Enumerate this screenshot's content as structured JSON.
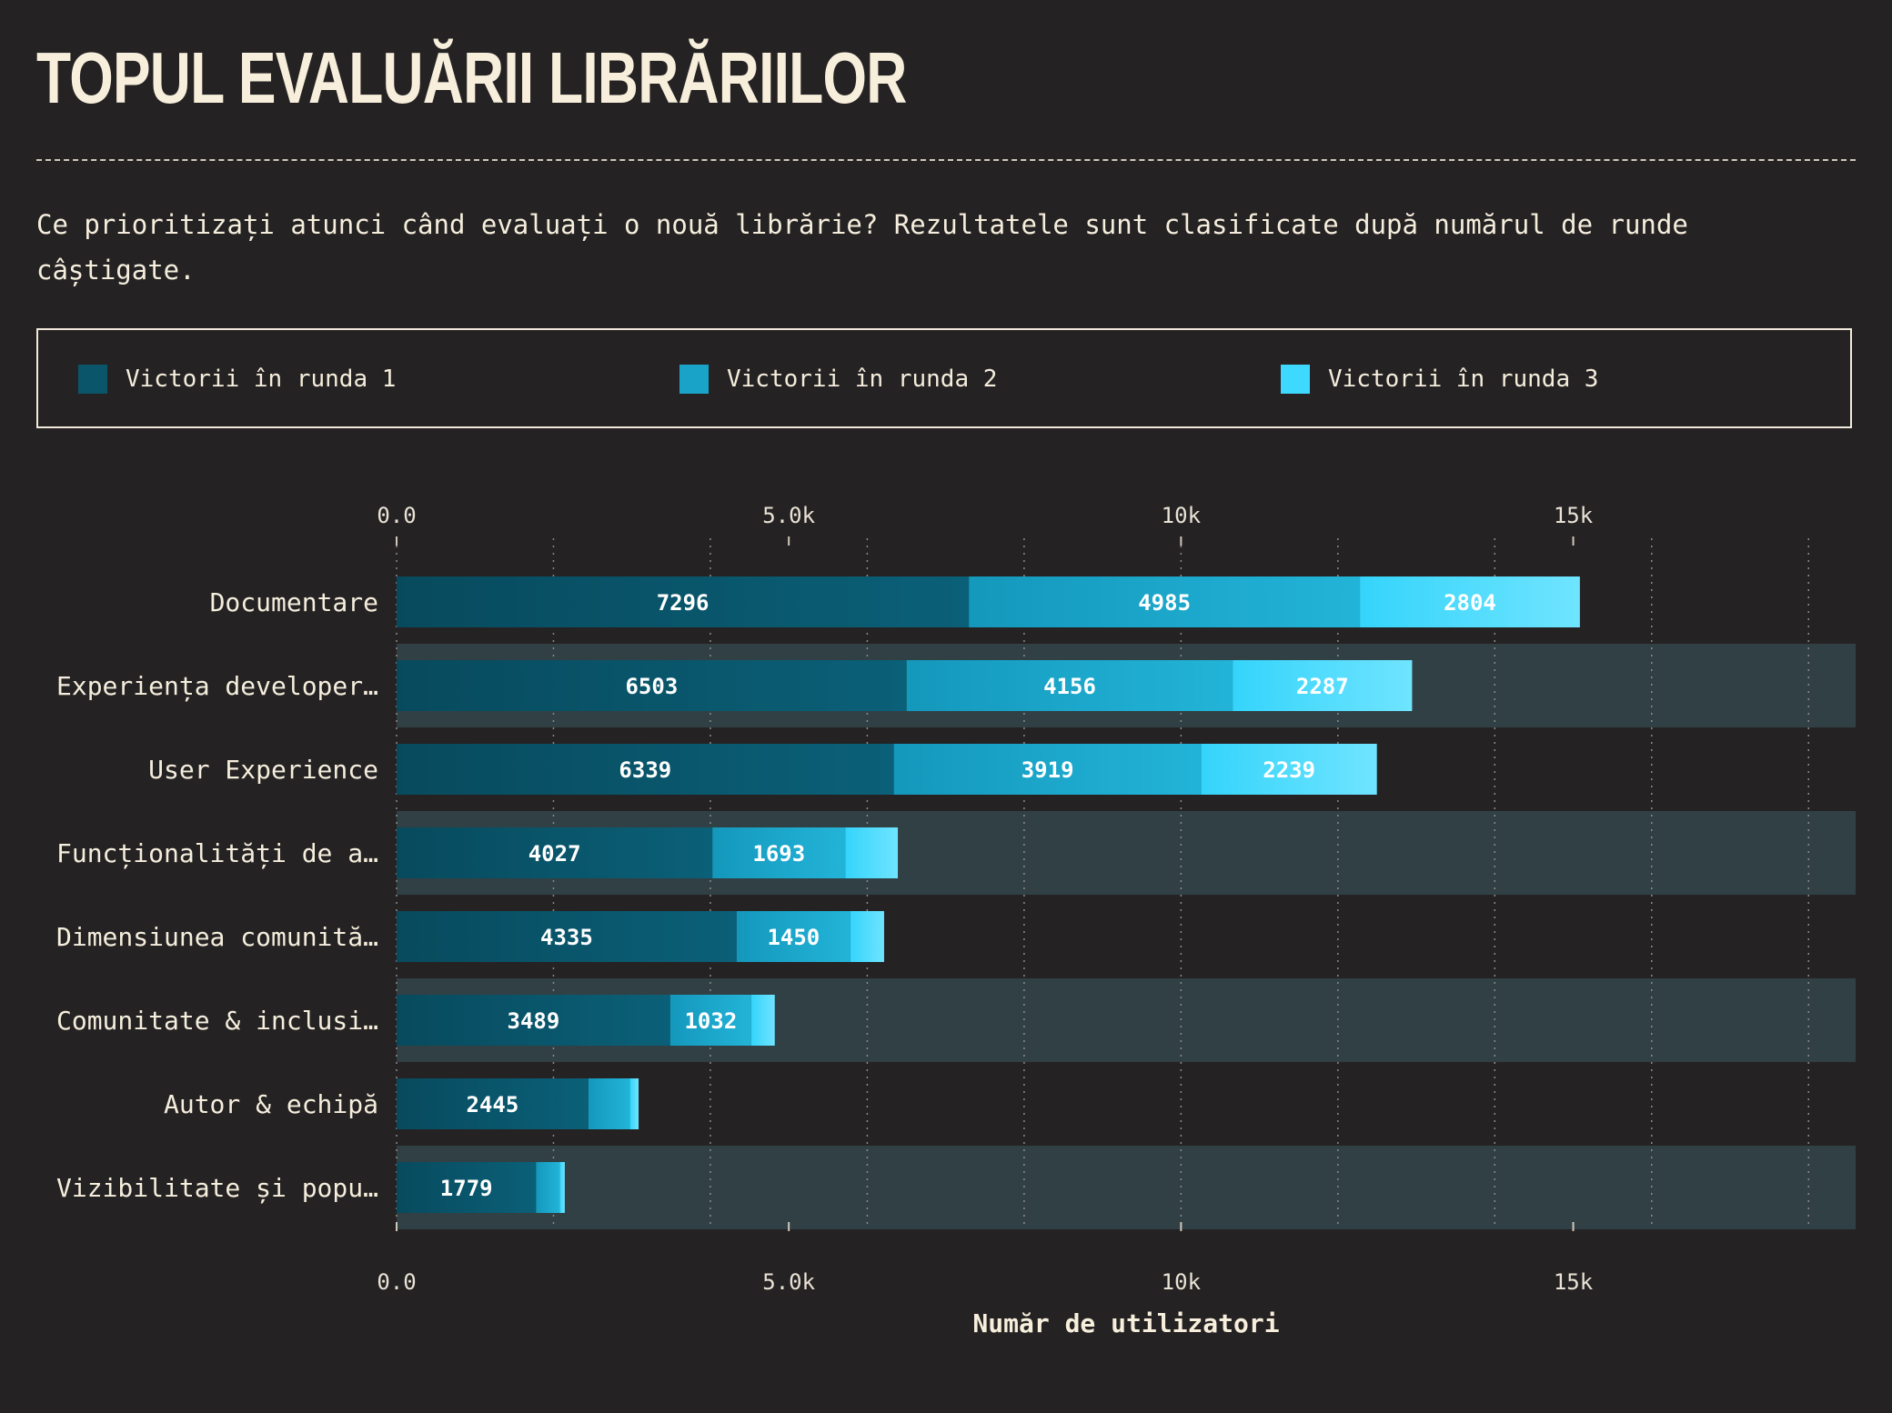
{
  "header": {
    "title": "TOPUL EVALUĂRII LIBRĂRIILOR",
    "subtitle": "Ce prioritizați atunci când evaluați o nouă librărie? Rezultatele sunt clasificate după numărul de runde câștigate."
  },
  "colors": {
    "background": "#252223",
    "band": "#314045",
    "round1": "#0a5569",
    "round2": "#1aa3c8",
    "round3": "#3dd9ff",
    "text": "#f5eedd"
  },
  "chart_data": {
    "type": "bar",
    "orientation": "horizontal",
    "stacked": true,
    "categories": [
      "Documentare",
      "Experiența developer…",
      "User Experience",
      "Funcționalități de a…",
      "Dimensiunea comunită…",
      "Comunitate & inclusi…",
      "Autor & echipă",
      "Vizibilitate și popu…"
    ],
    "series": [
      {
        "name": "Victorii în runda 1",
        "values": [
          7296,
          6503,
          6339,
          4027,
          4335,
          3489,
          2445,
          1779
        ]
      },
      {
        "name": "Victorii în runda 2",
        "values": [
          4985,
          4156,
          3919,
          1693,
          1450,
          1032,
          530,
          300
        ]
      },
      {
        "name": "Victorii în runda 3",
        "values": [
          2804,
          2287,
          2239,
          670,
          430,
          300,
          110,
          65
        ]
      }
    ],
    "xlabel": "Număr de utilizatori",
    "xlim": [
      0,
      18600
    ],
    "ticks": [
      0,
      5000,
      10000,
      15000
    ],
    "tick_labels": [
      "0.0",
      "5.0k",
      "10k",
      "15k"
    ],
    "legend_position": "top",
    "grid": true
  }
}
